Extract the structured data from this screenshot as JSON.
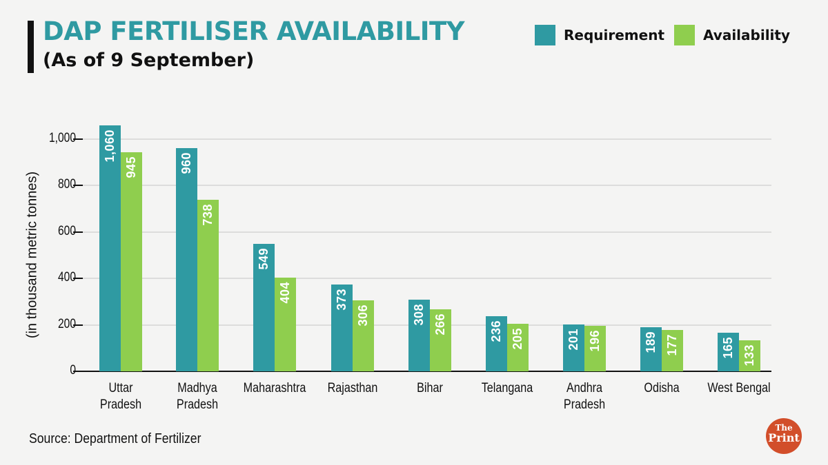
{
  "header": {
    "title": "DAP FERTILISER AVAILABILITY",
    "subtitle": "(As of 9 September)"
  },
  "legend": [
    {
      "label": "Requirement",
      "color": "#2f9aa2"
    },
    {
      "label": "Availability",
      "color": "#8fce4e"
    }
  ],
  "footer": {
    "source": "Source: Department of Fertilizer",
    "logo_top": "The",
    "logo_bottom": "Print"
  },
  "chart_data": {
    "type": "bar",
    "title": "DAP FERTILISER AVAILABILITY",
    "subtitle": "(As of 9 September)",
    "xlabel": "",
    "ylabel": "(in thousand metric tonnes)",
    "ylim": [
      0,
      1060
    ],
    "yticks": [
      0,
      200,
      400,
      600,
      800,
      1000
    ],
    "ytick_labels": [
      "0",
      "200",
      "400",
      "600",
      "800",
      "1,000"
    ],
    "grid": true,
    "legend_position": "top-right",
    "categories": [
      "Uttar Pradesh",
      "Madhya Pradesh",
      "Maharashtra",
      "Rajasthan",
      "Bihar",
      "Telangana",
      "Andhra Pradesh",
      "Odisha",
      "West Bengal"
    ],
    "category_labels": [
      [
        "Uttar",
        "Pradesh"
      ],
      [
        "Madhya",
        "Pradesh"
      ],
      [
        "Maharashtra"
      ],
      [
        "Rajasthan"
      ],
      [
        "Bihar"
      ],
      [
        "Telangana"
      ],
      [
        "Andhra",
        "Pradesh"
      ],
      [
        "Odisha"
      ],
      [
        "West Bengal"
      ]
    ],
    "series": [
      {
        "name": "Requirement",
        "color": "#2f9aa2",
        "values": [
          1060,
          960,
          549,
          373,
          308,
          236,
          201,
          189,
          165
        ],
        "labels": [
          "1,060",
          "960",
          "549",
          "373",
          "308",
          "236",
          "201",
          "189",
          "165"
        ]
      },
      {
        "name": "Availability",
        "color": "#8fce4e",
        "values": [
          945,
          738,
          404,
          306,
          266,
          205,
          196,
          177,
          133
        ],
        "labels": [
          "945",
          "738",
          "404",
          "306",
          "266",
          "205",
          "196",
          "177",
          "133"
        ]
      }
    ],
    "source": "Source: Department of Fertilizer"
  }
}
